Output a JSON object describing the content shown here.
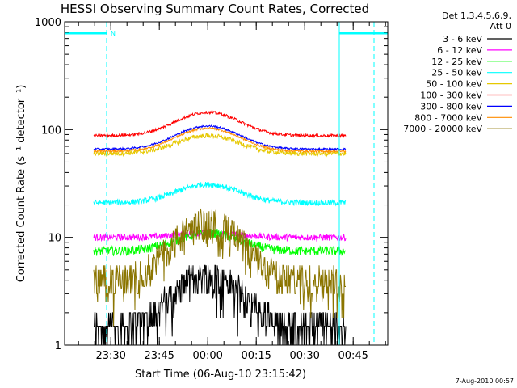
{
  "chart_data": {
    "type": "line",
    "title": "HESSI Observing Summary Count Rates, Corrected",
    "xlabel": "Start Time (06-Aug-10 23:15:42)",
    "ylabel": "Corrected Count Rate (s⁻¹ detector⁻¹)",
    "yscale": "log",
    "ylim": [
      1,
      1000
    ],
    "xlim": [
      "23:15:42",
      "00:55:42"
    ],
    "y_ticks": [
      "1",
      "10",
      "100",
      "1000"
    ],
    "x_ticks": [
      "23:30",
      "23:45",
      "00:00",
      "00:15",
      "00:30",
      "00:45"
    ],
    "x_tick_minutes": [
      14.3,
      29.3,
      44.3,
      59.3,
      74.3,
      89.3
    ],
    "legend_header": [
      "Det 1,3,4,5,6,9,",
      "Att 0"
    ],
    "legend_position": "right",
    "night_flag_label": "N",
    "night_intervals_min": [
      [
        0,
        13
      ],
      [
        85,
        100
      ]
    ],
    "data_window_min": [
      9,
      87
    ],
    "series": [
      {
        "name": "3 - 6 keV",
        "color": "#000000",
        "base": 1.5,
        "peak": 4.5,
        "noise": 0.5,
        "style": "quantized"
      },
      {
        "name": "6 - 12 keV",
        "color": "#ff00ff",
        "base": 10,
        "peak": 11,
        "noise": 0.07
      },
      {
        "name": "12 - 25 keV",
        "color": "#00ff00",
        "base": 7.5,
        "peak": 11,
        "noise": 0.1
      },
      {
        "name": "25 - 50 keV",
        "color": "#00ffff",
        "base": 21,
        "peak": 31,
        "noise": 0.06
      },
      {
        "name": "50 - 100 keV",
        "color": "#e6c800",
        "base": 60,
        "peak": 88,
        "noise": 0.05
      },
      {
        "name": "100 - 300 keV",
        "color": "#ff0000",
        "base": 88,
        "peak": 145,
        "noise": 0.03
      },
      {
        "name": "300 - 800 keV",
        "color": "#0000ff",
        "base": 66,
        "peak": 108,
        "noise": 0.02
      },
      {
        "name": "800 - 7000 keV",
        "color": "#ff8c00",
        "base": 63,
        "peak": 103,
        "noise": 0.02
      },
      {
        "name": "7000 - 20000 keV",
        "color": "#8b7500",
        "base": 4,
        "peak": 14,
        "noise": 0.12,
        "style": "quantized"
      }
    ]
  },
  "footer_date": "7-Aug-2010 00:57"
}
